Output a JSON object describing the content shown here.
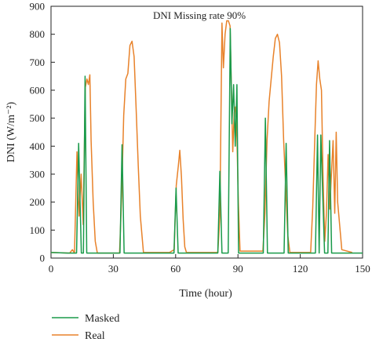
{
  "chart_data": {
    "type": "line",
    "title": "DNI Missing rate 90%",
    "xlabel": "Time (hour)",
    "ylabel": "DNI (W/m⁻²)",
    "xlim": [
      0,
      150
    ],
    "ylim": [
      0,
      900
    ],
    "xticks": [
      0,
      30,
      60,
      90,
      120,
      150
    ],
    "yticks": [
      0,
      100,
      200,
      300,
      400,
      500,
      600,
      700,
      800,
      900
    ],
    "grid": false,
    "legend": "bottom-left",
    "colors": {
      "Masked": "#1a9a4a",
      "Real": "#e8822a"
    },
    "series": [
      {
        "name": "Masked",
        "x": [
          0,
          8,
          11,
          12.3,
          13.3,
          14.6,
          15.6,
          16.4,
          17.2,
          18,
          18.8,
          33.2,
          34.2,
          35.2,
          36.5,
          59.2,
          60.2,
          61.2,
          62.2,
          80.3,
          81.3,
          82.3,
          83.3,
          85.3,
          86.3,
          87.1,
          87.9,
          88.7,
          89.5,
          90.3,
          91.1,
          102.2,
          103.2,
          104.2,
          105.2,
          112.2,
          113.2,
          114.2,
          115.2,
          127.3,
          128.3,
          129.1,
          129.9,
          131.7,
          132.5,
          133.3,
          134.1,
          135.1,
          135.9,
          137.7,
          138.5,
          150
        ],
        "y": [
          20,
          18,
          18,
          18,
          410,
          18,
          18,
          650,
          18,
          18,
          18,
          18,
          405,
          18,
          18,
          18,
          250,
          18,
          18,
          18,
          310,
          18,
          18,
          18,
          820,
          480,
          620,
          400,
          620,
          18,
          18,
          18,
          500,
          18,
          18,
          18,
          410,
          18,
          18,
          18,
          440,
          18,
          440,
          18,
          18,
          18,
          420,
          18,
          18,
          18,
          18,
          18
        ]
      },
      {
        "name": "Real",
        "x": [
          0,
          9,
          10.3,
          11.3,
          12.5,
          13.5,
          14.5,
          15.5,
          16.5,
          17.3,
          18,
          18.7,
          19.3,
          20.3,
          21.3,
          22.3,
          33,
          34,
          35,
          36,
          37,
          38,
          39,
          40,
          41,
          42,
          43,
          44.5,
          55,
          57,
          59.3,
          60.3,
          61.3,
          62,
          62.8,
          63.6,
          64.4,
          65.2,
          80.3,
          81.3,
          82.3,
          83,
          83.8,
          84.6,
          85.4,
          86.2,
          86.8,
          87.5,
          88.2,
          88.8,
          89.5,
          90.2,
          91,
          102,
          103,
          104,
          105,
          106,
          107,
          108,
          109,
          110,
          111,
          112,
          113,
          114,
          115,
          125,
          126,
          127,
          127.8,
          128.6,
          129.4,
          130.2,
          131,
          131.8,
          132.6,
          133.4,
          134.2,
          135,
          135.8,
          136.6,
          137.3,
          138,
          140,
          145
        ],
        "y": [
          20,
          18,
          30,
          18,
          380,
          150,
          300,
          120,
          610,
          640,
          620,
          655,
          420,
          200,
          60,
          18,
          18,
          220,
          510,
          640,
          660,
          760,
          775,
          720,
          530,
          330,
          150,
          20,
          20,
          20,
          30,
          260,
          330,
          385,
          290,
          140,
          40,
          20,
          20,
          150,
          840,
          680,
          800,
          848,
          848,
          830,
          620,
          380,
          520,
          540,
          430,
          200,
          25,
          25,
          160,
          420,
          560,
          640,
          720,
          785,
          800,
          770,
          650,
          420,
          250,
          80,
          20,
          20,
          180,
          430,
          620,
          705,
          640,
          600,
          280,
          60,
          160,
          370,
          175,
          300,
          420,
          160,
          450,
          200,
          30,
          20
        ]
      }
    ]
  }
}
